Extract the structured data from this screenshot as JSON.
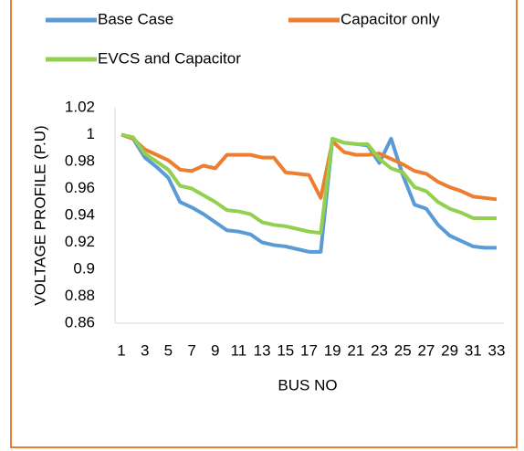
{
  "chart_data": {
    "type": "line",
    "xlabel": "BUS NO",
    "ylabel": "VOLTAGE PROFILE (P.U)",
    "categories": [
      "1",
      null,
      "3",
      null,
      "5",
      null,
      "7",
      null,
      "9",
      null,
      "11",
      null,
      "13",
      null,
      "15",
      null,
      "17",
      null,
      "19",
      null,
      "21",
      null,
      "23",
      null,
      "25",
      null,
      "27",
      null,
      "29",
      null,
      "31",
      null,
      "33"
    ],
    "series": [
      {
        "name": "Base Case",
        "color": "#5b9bd5",
        "values": [
          1.0,
          0.997,
          0.983,
          0.976,
          0.968,
          0.95,
          0.946,
          0.941,
          0.935,
          0.929,
          0.928,
          0.926,
          0.92,
          0.918,
          0.917,
          0.915,
          0.913,
          0.913,
          0.997,
          0.994,
          0.993,
          0.992,
          0.979,
          0.997,
          0.97,
          0.948,
          0.945,
          0.933,
          0.925,
          0.921,
          0.917,
          0.916,
          0.916
        ]
      },
      {
        "name": "Capacitor only",
        "color": "#ed7d31",
        "values": [
          1.0,
          0.997,
          0.989,
          0.985,
          0.981,
          0.974,
          0.973,
          0.977,
          0.975,
          0.985,
          0.985,
          0.985,
          0.983,
          0.983,
          0.972,
          0.971,
          0.97,
          0.953,
          0.995,
          0.987,
          0.985,
          0.985,
          0.986,
          0.982,
          0.978,
          0.973,
          0.971,
          0.965,
          0.961,
          0.958,
          0.954,
          0.953,
          0.952
        ]
      },
      {
        "name": "EVCS and Capacitor",
        "color": "#92d050",
        "values": [
          1.0,
          0.998,
          0.986,
          0.98,
          0.974,
          0.962,
          0.96,
          0.955,
          0.95,
          0.944,
          0.943,
          0.941,
          0.935,
          0.933,
          0.932,
          0.93,
          0.928,
          0.927,
          0.997,
          0.994,
          0.993,
          0.993,
          0.982,
          0.975,
          0.972,
          0.961,
          0.958,
          0.95,
          0.945,
          0.942,
          0.938,
          0.938,
          0.938
        ]
      }
    ],
    "ylim": [
      0.86,
      1.02
    ],
    "yticks": [
      0.86,
      0.88,
      0.9,
      0.92,
      0.94,
      0.96,
      0.98,
      1,
      1.02
    ],
    "grid": false,
    "legend": "top"
  }
}
